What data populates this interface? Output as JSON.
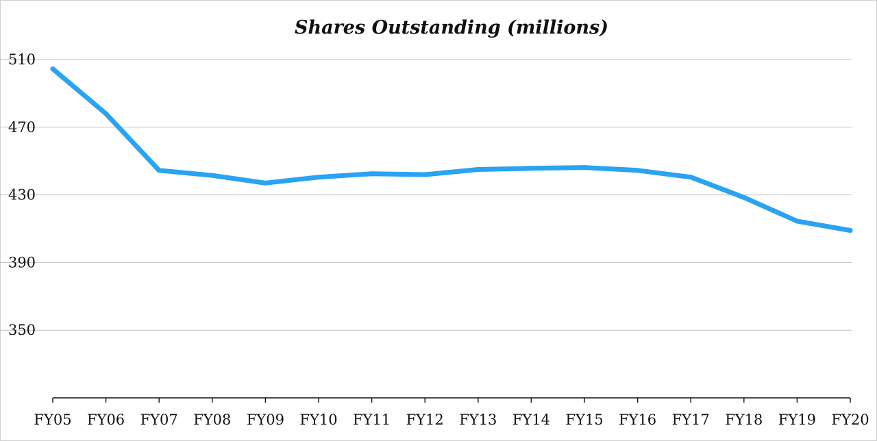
{
  "chart_data": {
    "type": "line",
    "title": "Shares Outstanding (millions)",
    "xlabel": "",
    "ylabel": "",
    "categories": [
      "FY05",
      "FY06",
      "FY07",
      "FY08",
      "FY09",
      "FY10",
      "FY11",
      "FY12",
      "FY13",
      "FY14",
      "FY15",
      "FY16",
      "FY17",
      "FY18",
      "FY19",
      "FY20"
    ],
    "series": [
      {
        "color": "#29a3f2",
        "values": [
          504.5,
          478,
          444.5,
          441.5,
          437,
          440.5,
          442.5,
          442,
          445,
          445.7,
          446.2,
          444.5,
          440.5,
          428.5,
          414.5,
          409
        ]
      }
    ],
    "ylim": [
      310,
      510
    ],
    "yticks": [
      510,
      470,
      430,
      390,
      350
    ],
    "grid": true,
    "legend": "none"
  }
}
